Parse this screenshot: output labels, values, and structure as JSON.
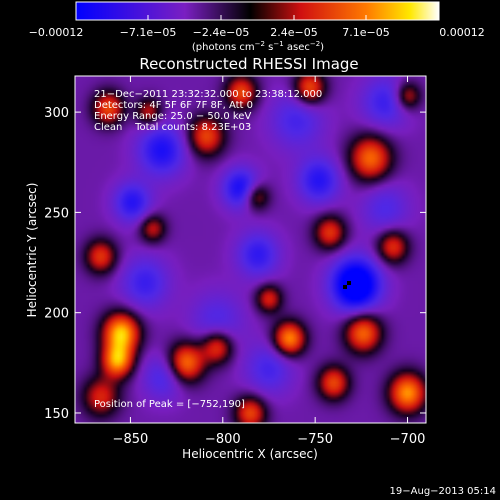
{
  "colorbar": {
    "tick_labels": [
      "−0.00012",
      "−7.1e−05",
      "−2.4e−05",
      "2.4e−05",
      "7.1e−05",
      "0.00012"
    ],
    "unit_prefix": "(photons cm",
    "unit_exp1": "−2",
    "unit_mid": " s",
    "unit_exp2": "−1",
    "unit_mid2": " asec",
    "unit_exp3": "−2",
    "unit_suffix": ")"
  },
  "annotation": {
    "line1": "21−Dec−2011 23:32:32.000 to 23:38:12.000",
    "line2": "Detectors: 4F 5F 6F 7F 8F, Att 0",
    "line3": "Energy Range: 25.0 − 50.0 keV",
    "line4": "Clean    Total counts: 8.23E+03",
    "peak": "Position of Peak = [−752,190]"
  },
  "footer": {
    "timestamp": "19−Aug−2013 05:14"
  },
  "chart_data": {
    "type": "heatmap",
    "title": "Reconstructed RHESSI Image",
    "xlabel": "Heliocentric X (arcsec)",
    "ylabel": "Heliocentric Y (arcsec)",
    "xlim": [
      -880,
      -690
    ],
    "ylim": [
      145,
      318
    ],
    "x_ticks": [
      -850,
      -800,
      -750,
      -700
    ],
    "y_ticks": [
      150,
      200,
      250,
      300
    ],
    "x_tick_labels": [
      "−850",
      "−800",
      "−750",
      "−700"
    ],
    "y_tick_labels": [
      "150",
      "200",
      "250",
      "300"
    ],
    "colorbar_range": [
      -0.00012,
      0.00012
    ],
    "colorbar_ticks": [
      -0.00012,
      -7.1e-05,
      -2.4e-05,
      2.4e-05,
      7.1e-05,
      0.00012
    ],
    "colormap": "blue-black-red-yellow-white",
    "peak_position": [
      -752,
      190
    ],
    "features": [
      {
        "x": -728,
        "y": 214,
        "sigma": 9,
        "amp": -1.0
      },
      {
        "x": -790,
        "y": 262,
        "sigma": 7,
        "amp": -0.6
      },
      {
        "x": -833,
        "y": 281,
        "sigma": 9,
        "amp": -0.55
      },
      {
        "x": -748,
        "y": 266,
        "sigma": 8,
        "amp": -0.5
      },
      {
        "x": -849,
        "y": 255,
        "sigma": 7,
        "amp": -0.5
      },
      {
        "x": -781,
        "y": 229,
        "sigma": 8,
        "amp": -0.45
      },
      {
        "x": -712,
        "y": 305,
        "sigma": 9,
        "amp": -0.4
      },
      {
        "x": -842,
        "y": 215,
        "sigma": 9,
        "amp": -0.4
      },
      {
        "x": -760,
        "y": 296,
        "sigma": 10,
        "amp": -0.35
      },
      {
        "x": -775,
        "y": 172,
        "sigma": 9,
        "amp": -0.35
      },
      {
        "x": -832,
        "y": 168,
        "sigma": 8,
        "amp": -0.35
      },
      {
        "x": -803,
        "y": 196,
        "sigma": 10,
        "amp": -0.3
      },
      {
        "x": -712,
        "y": 252,
        "sigma": 9,
        "amp": -0.3
      },
      {
        "x": -855,
        "y": 190,
        "sigma": 7,
        "amp": 0.9
      },
      {
        "x": -857,
        "y": 176,
        "sigma": 6,
        "amp": 0.8
      },
      {
        "x": -820,
        "y": 175,
        "sigma": 7,
        "amp": 0.75
      },
      {
        "x": -803,
        "y": 183,
        "sigma": 6,
        "amp": 0.6
      },
      {
        "x": -764,
        "y": 187,
        "sigma": 6,
        "amp": 0.8
      },
      {
        "x": -782,
        "y": 258,
        "sigma": 5,
        "amp": 0.5
      },
      {
        "x": -809,
        "y": 288,
        "sigma": 7,
        "amp": 0.6
      },
      {
        "x": -790,
        "y": 310,
        "sigma": 6,
        "amp": 0.6
      },
      {
        "x": -753,
        "y": 312,
        "sigma": 6,
        "amp": 0.65
      },
      {
        "x": -720,
        "y": 277,
        "sigma": 8,
        "amp": 0.7
      },
      {
        "x": -700,
        "y": 308,
        "sigma": 5,
        "amp": 0.5
      },
      {
        "x": -742,
        "y": 240,
        "sigma": 6,
        "amp": 0.55
      },
      {
        "x": -708,
        "y": 233,
        "sigma": 6,
        "amp": 0.55
      },
      {
        "x": -724,
        "y": 190,
        "sigma": 7,
        "amp": 0.7
      },
      {
        "x": -740,
        "y": 165,
        "sigma": 6,
        "amp": 0.6
      },
      {
        "x": -700,
        "y": 160,
        "sigma": 7,
        "amp": 0.8
      },
      {
        "x": -785,
        "y": 150,
        "sigma": 6,
        "amp": 0.6
      },
      {
        "x": -866,
        "y": 158,
        "sigma": 7,
        "amp": 0.5
      },
      {
        "x": -866,
        "y": 228,
        "sigma": 6,
        "amp": 0.55
      },
      {
        "x": -862,
        "y": 302,
        "sigma": 6,
        "amp": 0.6
      },
      {
        "x": -838,
        "y": 242,
        "sigma": 5,
        "amp": 0.45
      },
      {
        "x": -775,
        "y": 207,
        "sigma": 5,
        "amp": 0.5
      },
      {
        "x": -840,
        "y": 300,
        "sigma": 5,
        "amp": 0.45
      }
    ]
  }
}
